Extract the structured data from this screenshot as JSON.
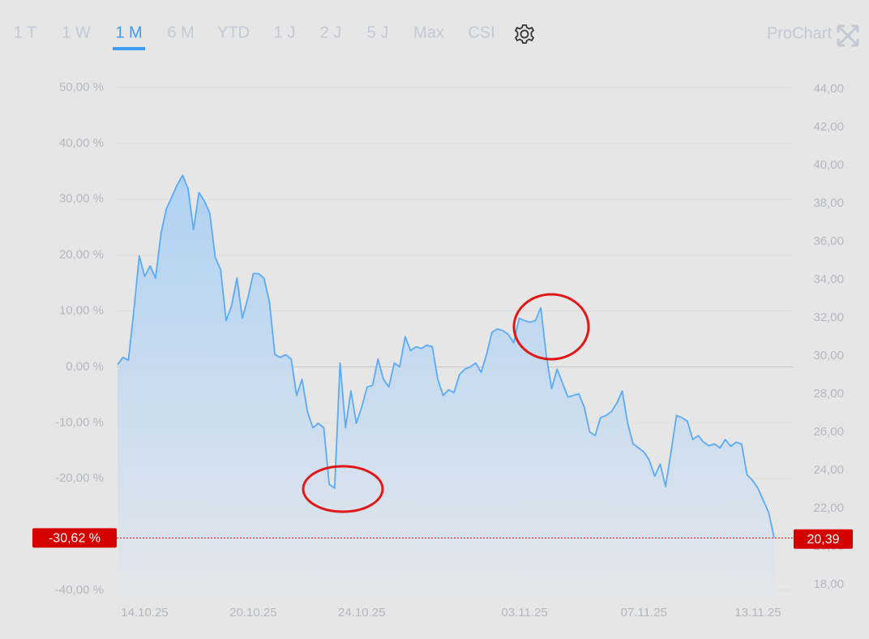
{
  "tabs": [
    "1 T",
    "1 W",
    "1 M",
    "6 M",
    "YTD",
    "1 J",
    "2 J",
    "5 J",
    "Max",
    "CSI"
  ],
  "active_tab": 2,
  "brand": "ProChart",
  "chart_data": {
    "type": "line",
    "categories": [
      null,
      null,
      null,
      null,
      null,
      "14.10.25",
      null,
      null,
      null,
      null,
      null,
      null,
      null,
      null,
      null,
      null,
      null,
      null,
      null,
      null,
      null,
      null,
      null,
      null,
      null,
      "20.10.25",
      null,
      null,
      null,
      null,
      null,
      null,
      null,
      null,
      null,
      null,
      null,
      null,
      null,
      null,
      null,
      null,
      null,
      null,
      null,
      "24.10.25",
      null,
      null,
      null,
      null,
      null,
      null,
      null,
      null,
      null,
      null,
      null,
      null,
      null,
      null,
      null,
      null,
      null,
      null,
      null,
      null,
      null,
      null,
      null,
      null,
      null,
      null,
      null,
      null,
      null,
      "03.11.25",
      null,
      null,
      null,
      null,
      null,
      null,
      null,
      null,
      null,
      null,
      null,
      null,
      null,
      null,
      null,
      null,
      null,
      null,
      null,
      null,
      null,
      "07.11.25",
      null,
      null,
      null,
      null,
      null,
      null,
      null,
      null,
      null,
      null,
      null,
      null,
      null,
      null,
      null,
      null,
      null,
      null,
      null,
      null,
      "13.11.25",
      null,
      null,
      null
    ],
    "series": [
      {
        "color": "#5aabf5",
        "values": [
          0.4,
          1.7,
          1.2,
          10.1,
          19.9,
          16.2,
          18.1,
          15.9,
          23.9,
          28.3,
          30.4,
          32.6,
          34.3,
          31.9,
          24.6,
          31.2,
          29.7,
          27.5,
          19.6,
          17.4,
          8.3,
          10.9,
          15.9,
          8.7,
          12.3,
          16.7,
          16.7,
          15.9,
          11.6,
          2.2,
          1.7,
          2.2,
          1.4,
          -5.1,
          -2.2,
          -8.0,
          -10.9,
          -10.1,
          -10.9,
          -21.0,
          -21.7,
          0.7,
          -10.9,
          -4.3,
          -10.1,
          -7.2,
          -3.6,
          -3.3,
          1.4,
          -2.2,
          -3.6,
          0.7,
          0,
          5.4,
          2.9,
          3.6,
          3.3,
          3.9,
          3.6,
          -2.2,
          -5.1,
          -4.1,
          -4.6,
          -1.4,
          -0.4,
          0,
          0.7,
          -1.0,
          2.2,
          6.2,
          6.8,
          6.5,
          5.8,
          4.3,
          8.7,
          8.3,
          8.0,
          8.3,
          10.6,
          2.2,
          -3.9,
          -0.4,
          -2.9,
          -5.4,
          -5.1,
          -4.8,
          -7.2,
          -11.6,
          -12.3,
          -9.1,
          -8.7,
          -8.0,
          -6.5,
          -4.3,
          -10.1,
          -13.8,
          -14.5,
          -15.2,
          -16.7,
          -19.6,
          -17.4,
          -21.4,
          -15.2,
          -8.7,
          -9.1,
          -9.7,
          -13.0,
          -12.3,
          -13.5,
          -14.1,
          -13.8,
          -14.5,
          -13.0,
          -14.2,
          -13.5,
          -13.8,
          -19.3,
          -20.3,
          -21.7,
          -23.9,
          -26.1,
          -30.62
        ]
      }
    ],
    "ylim": [
      -40,
      50
    ],
    "yticks": [
      {
        "value": 50,
        "label": "50,00 %"
      },
      {
        "value": 40,
        "label": "40,00 %"
      },
      {
        "value": 30,
        "label": "30,00 %"
      },
      {
        "value": 20,
        "label": "20,00 %"
      },
      {
        "value": 10,
        "label": "10,00 %"
      },
      {
        "value": 0,
        "label": "0,00 %"
      },
      {
        "value": -10,
        "label": "-10,00 %"
      },
      {
        "value": -20,
        "label": "-20,00 %"
      },
      {
        "value": -30,
        "label": "-30,00 %"
      },
      {
        "value": -40,
        "label": "-40,00 %"
      }
    ],
    "y2lim": [
      17.7,
      44.09
    ],
    "y2ticks": [
      {
        "value": 44,
        "label": "44,00"
      },
      {
        "value": 42,
        "label": "42,00"
      },
      {
        "value": 40,
        "label": "40,00"
      },
      {
        "value": 38,
        "label": "38,00"
      },
      {
        "value": 36,
        "label": "36,00"
      },
      {
        "value": 34,
        "label": "34,00"
      },
      {
        "value": 32,
        "label": "32,00"
      },
      {
        "value": 30,
        "label": "30,00"
      },
      {
        "value": 28,
        "label": "28,00"
      },
      {
        "value": 26,
        "label": "26,00"
      },
      {
        "value": 24,
        "label": "24,00"
      },
      {
        "value": 22,
        "label": "22,00"
      },
      {
        "value": 20,
        "label": "20,00"
      },
      {
        "value": 18,
        "label": "18,00"
      }
    ],
    "markers": [
      {
        "axis": "y",
        "value": -30.62,
        "label": "-30,62 %"
      },
      {
        "axis": "y2",
        "value": 20.39,
        "label": "20,39"
      }
    ],
    "marker_color": "#d40000",
    "grid": true
  }
}
